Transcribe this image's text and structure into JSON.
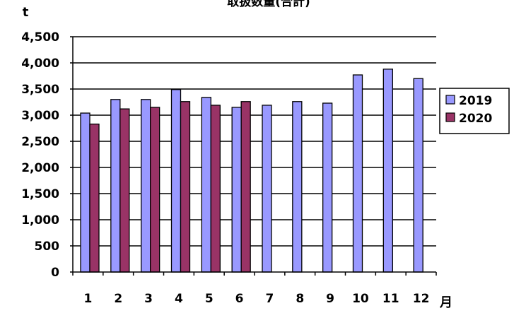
{
  "chart_data": {
    "type": "bar",
    "title": "取扱数量(合計)",
    "ylabel": "t",
    "xlabel": "月",
    "categories": [
      "1",
      "2",
      "3",
      "4",
      "5",
      "6",
      "7",
      "8",
      "9",
      "10",
      "11",
      "12"
    ],
    "ylim": [
      0,
      4500
    ],
    "ytick_labels": [
      "0",
      "500",
      "1,000",
      "1,500",
      "2,000",
      "2,500",
      "3,000",
      "3,500",
      "4,000",
      "4,500"
    ],
    "ytick_values": [
      0,
      500,
      1000,
      1500,
      2000,
      2500,
      3000,
      3500,
      4000,
      4500
    ],
    "grid": true,
    "legend_position": "right",
    "series": [
      {
        "name": "2019",
        "color": "#9999ff",
        "values": [
          3040,
          3300,
          3300,
          3490,
          3340,
          3150,
          3190,
          3260,
          3230,
          3770,
          3880,
          3700
        ]
      },
      {
        "name": "2020",
        "color": "#993366",
        "values": [
          2830,
          3120,
          3150,
          3260,
          3190,
          3260,
          null,
          null,
          null,
          null,
          null,
          null
        ]
      }
    ]
  }
}
